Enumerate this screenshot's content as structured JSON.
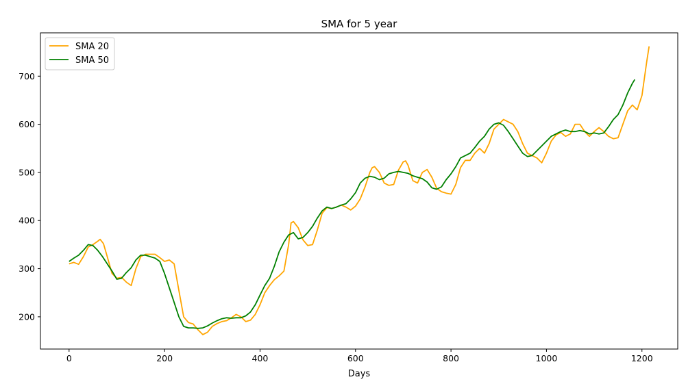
{
  "chart_data": {
    "type": "line",
    "title": "SMA for 5 year",
    "xlabel": "Days",
    "ylabel": "",
    "xlim": [
      -60,
      1275
    ],
    "ylim": [
      133,
      790
    ],
    "xticks": [
      0,
      200,
      400,
      600,
      800,
      1000,
      1200
    ],
    "yticks": [
      200,
      300,
      400,
      500,
      600,
      700
    ],
    "legend_position": "top-left",
    "grid": false,
    "series": [
      {
        "name": "SMA 20",
        "color": "#ffa500",
        "x": [
          0,
          10,
          20,
          30,
          40,
          50,
          60,
          65,
          72,
          80,
          90,
          100,
          110,
          120,
          130,
          140,
          150,
          160,
          170,
          180,
          190,
          200,
          210,
          220,
          230,
          240,
          250,
          260,
          270,
          280,
          290,
          300,
          310,
          320,
          330,
          340,
          350,
          360,
          370,
          380,
          390,
          400,
          410,
          420,
          430,
          440,
          450,
          460,
          465,
          470,
          480,
          490,
          500,
          510,
          520,
          530,
          540,
          550,
          560,
          570,
          580,
          590,
          600,
          610,
          620,
          630,
          635,
          640,
          650,
          660,
          670,
          680,
          690,
          700,
          705,
          710,
          720,
          730,
          740,
          750,
          760,
          770,
          780,
          790,
          800,
          810,
          820,
          830,
          840,
          850,
          860,
          870,
          880,
          890,
          900,
          910,
          920,
          930,
          940,
          950,
          960,
          970,
          980,
          990,
          1000,
          1010,
          1020,
          1030,
          1040,
          1050,
          1060,
          1070,
          1080,
          1090,
          1100,
          1110,
          1120,
          1130,
          1140,
          1150,
          1160,
          1170,
          1180,
          1190,
          1200,
          1210,
          1215
        ],
        "values": [
          310,
          313,
          309,
          325,
          345,
          350,
          357,
          361,
          352,
          325,
          290,
          280,
          282,
          272,
          265,
          300,
          325,
          330,
          330,
          330,
          323,
          315,
          318,
          310,
          255,
          200,
          188,
          185,
          173,
          163,
          168,
          180,
          186,
          190,
          192,
          198,
          205,
          200,
          190,
          193,
          205,
          225,
          250,
          265,
          277,
          285,
          295,
          350,
          395,
          398,
          385,
          360,
          348,
          350,
          380,
          415,
          427,
          425,
          428,
          432,
          428,
          422,
          430,
          445,
          470,
          500,
          510,
          512,
          500,
          478,
          473,
          475,
          505,
          522,
          524,
          515,
          483,
          478,
          500,
          506,
          490,
          467,
          460,
          457,
          455,
          475,
          510,
          525,
          525,
          540,
          550,
          540,
          560,
          590,
          600,
          610,
          605,
          600,
          585,
          560,
          540,
          535,
          530,
          520,
          540,
          565,
          578,
          583,
          575,
          580,
          600,
          600,
          585,
          575,
          585,
          593,
          585,
          575,
          570,
          572,
          600,
          628,
          640,
          630,
          660,
          730,
          762
        ]
      },
      {
        "name": "SMA 50",
        "color": "#008000",
        "x": [
          0,
          10,
          20,
          30,
          40,
          50,
          60,
          70,
          80,
          90,
          100,
          110,
          120,
          130,
          140,
          150,
          160,
          170,
          180,
          190,
          200,
          210,
          220,
          230,
          240,
          250,
          260,
          270,
          280,
          290,
          300,
          310,
          320,
          330,
          340,
          350,
          360,
          370,
          380,
          390,
          400,
          410,
          420,
          430,
          440,
          450,
          460,
          470,
          480,
          490,
          500,
          510,
          520,
          530,
          540,
          550,
          560,
          570,
          580,
          590,
          600,
          610,
          620,
          630,
          640,
          650,
          660,
          670,
          680,
          690,
          700,
          710,
          720,
          730,
          740,
          750,
          760,
          770,
          780,
          790,
          800,
          810,
          820,
          830,
          840,
          850,
          860,
          870,
          880,
          890,
          900,
          910,
          920,
          930,
          940,
          950,
          960,
          970,
          980,
          990,
          1000,
          1010,
          1020,
          1030,
          1040,
          1050,
          1060,
          1070,
          1080,
          1090,
          1100,
          1110,
          1120,
          1130,
          1140,
          1150,
          1160,
          1170,
          1180,
          1185
        ],
        "values": [
          315,
          322,
          328,
          338,
          350,
          348,
          338,
          325,
          310,
          295,
          278,
          280,
          292,
          302,
          318,
          328,
          328,
          325,
          322,
          315,
          290,
          260,
          230,
          200,
          180,
          177,
          177,
          176,
          177,
          181,
          187,
          192,
          196,
          198,
          197,
          198,
          198,
          202,
          210,
          225,
          245,
          265,
          280,
          305,
          335,
          355,
          370,
          375,
          362,
          365,
          375,
          388,
          405,
          420,
          428,
          425,
          428,
          432,
          435,
          445,
          458,
          478,
          488,
          492,
          490,
          485,
          488,
          497,
          500,
          502,
          500,
          498,
          493,
          490,
          487,
          480,
          468,
          465,
          470,
          485,
          497,
          512,
          530,
          535,
          540,
          552,
          565,
          575,
          590,
          600,
          603,
          598,
          585,
          570,
          555,
          540,
          533,
          535,
          545,
          555,
          565,
          575,
          580,
          585,
          588,
          585,
          585,
          587,
          585,
          580,
          582,
          580,
          582,
          595,
          610,
          620,
          640,
          665,
          685,
          693
        ]
      }
    ]
  }
}
